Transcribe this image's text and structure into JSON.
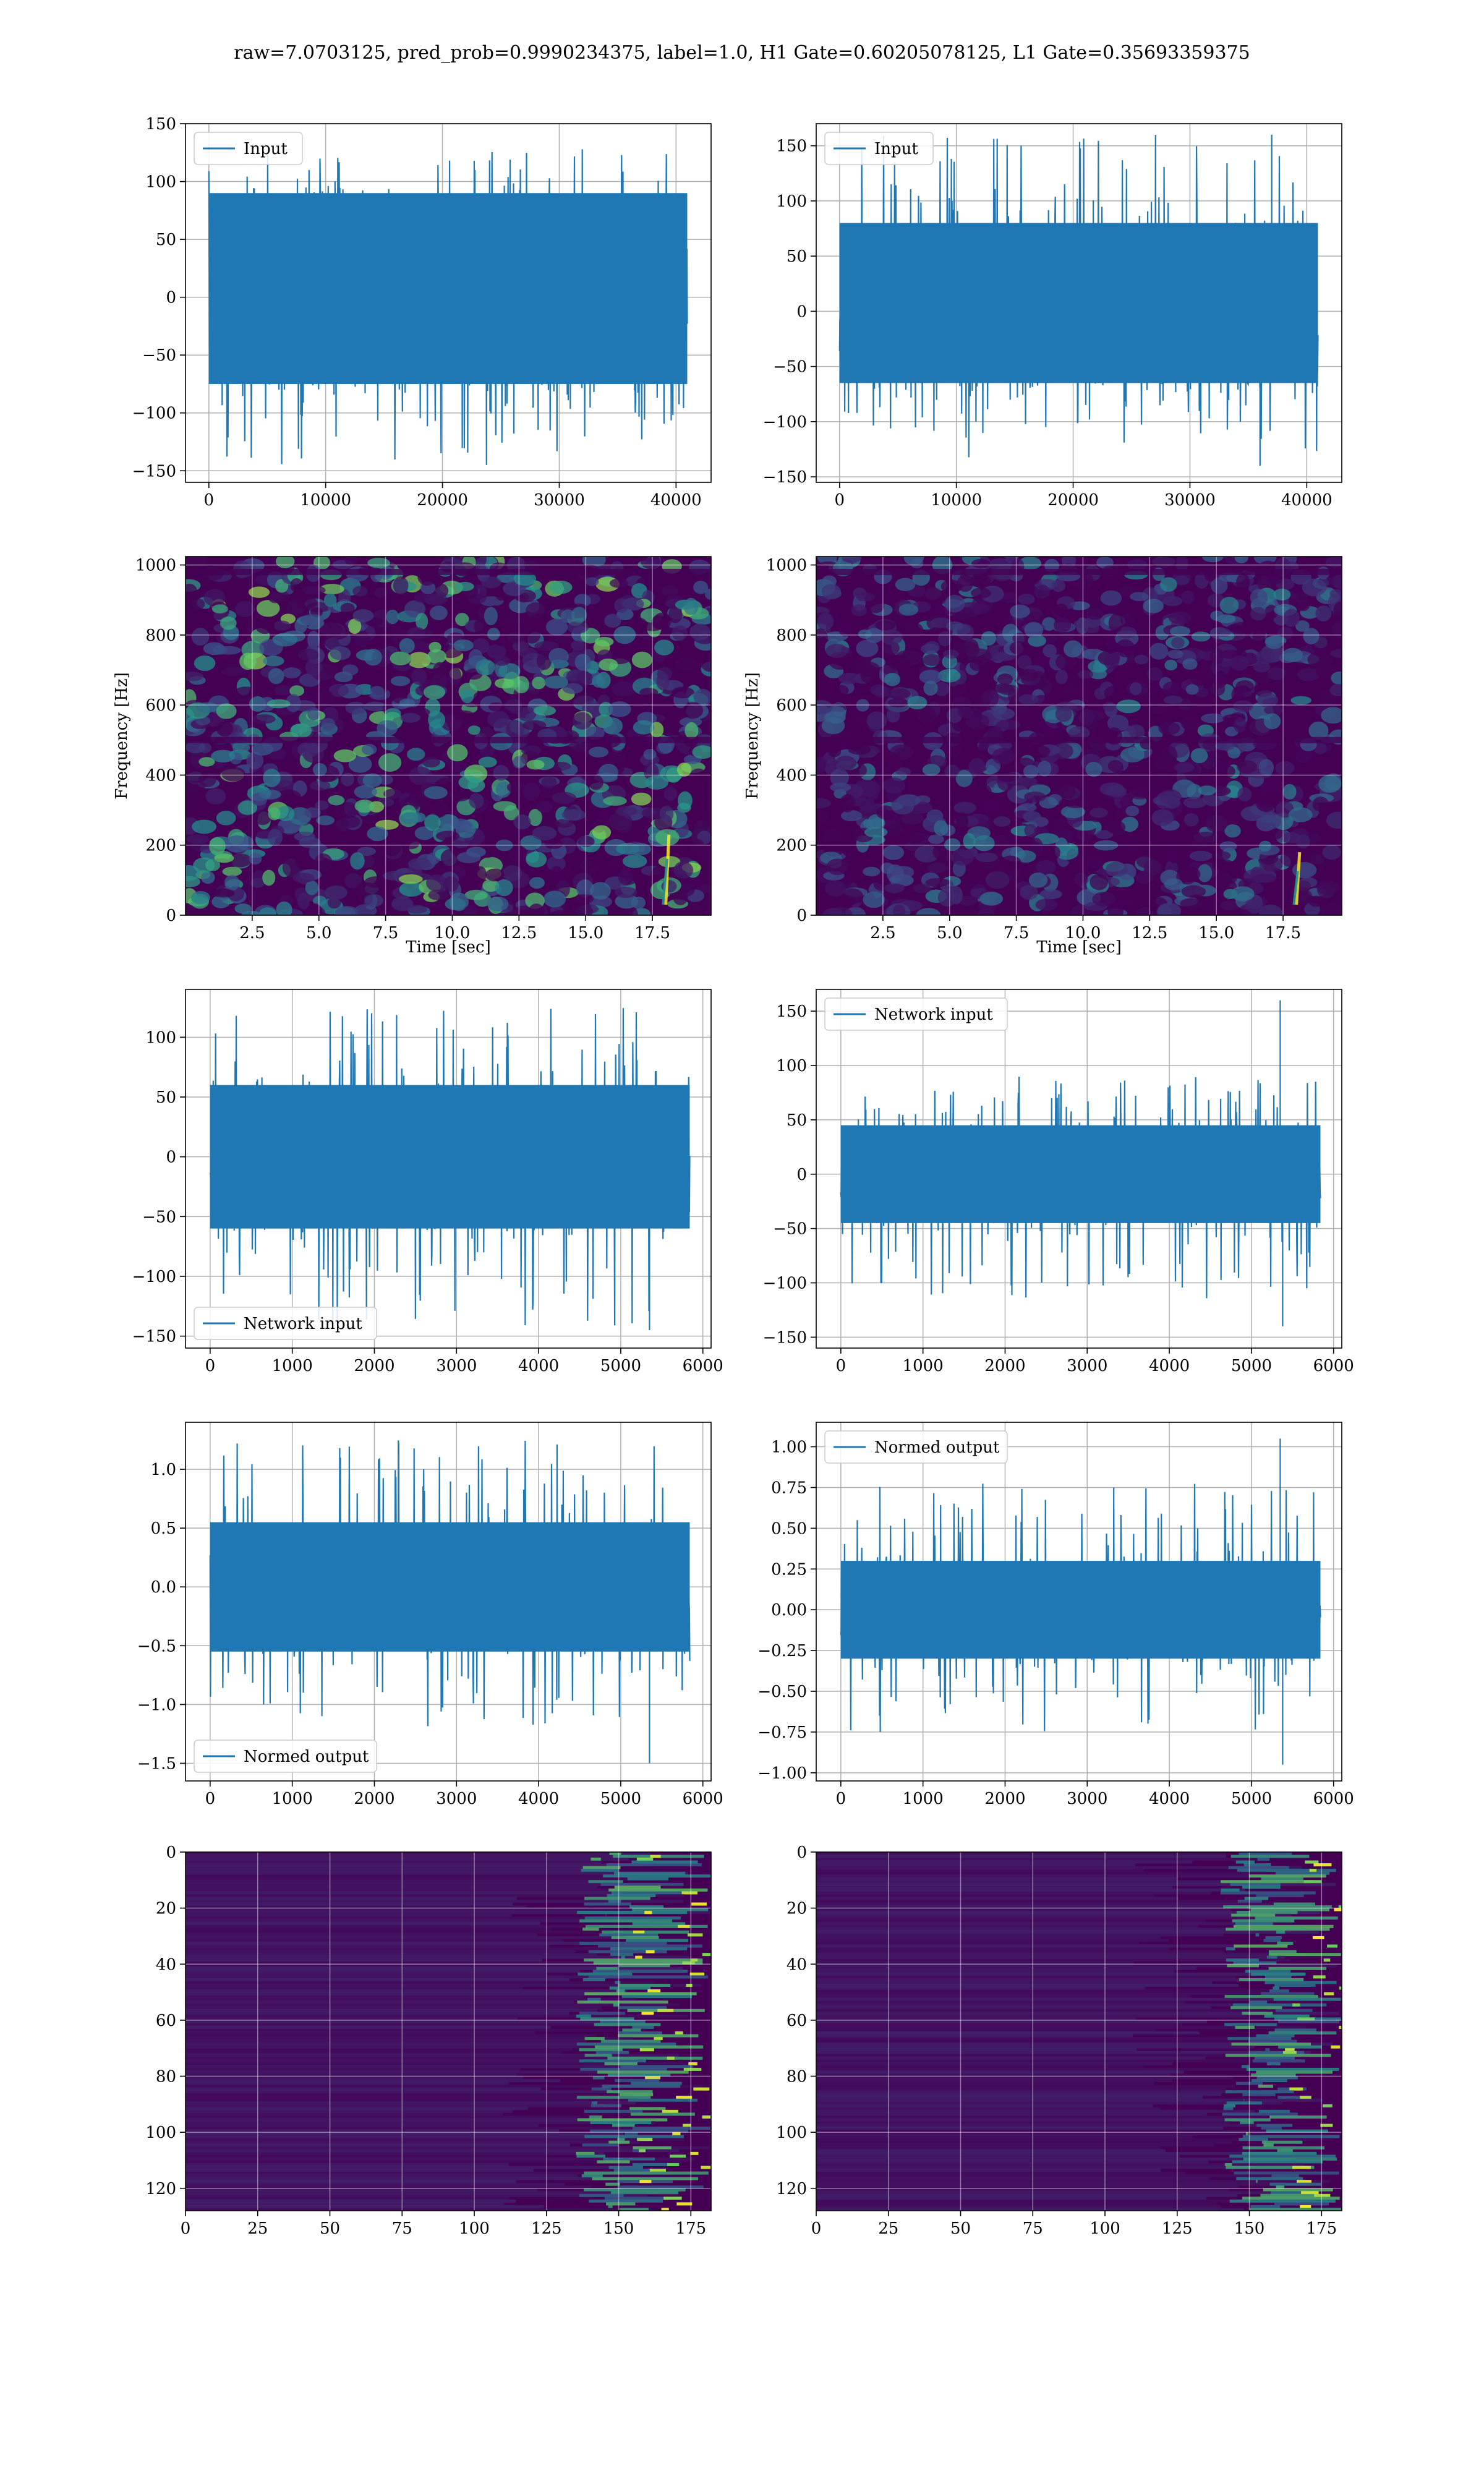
{
  "figure": {
    "title": "raw=7.0703125, pred_prob=0.9990234375, label=1.0, H1 Gate=0.60205078125, L1 Gate=0.35693359375"
  },
  "colors": {
    "line": "#1f77b4",
    "grid": "#b0b0b0",
    "spine": "#000000",
    "viridis_low": "#440154",
    "viridis_mid": "#21918c",
    "viridis_high": "#fde725"
  },
  "chart_data": [
    {
      "type": "line",
      "id": "input-h1",
      "legend": "Input",
      "legend_loc": "upper-left",
      "xlim": [
        -2000,
        43000
      ],
      "ylim": [
        -160,
        150
      ],
      "xticks": [
        0,
        10000,
        20000,
        30000,
        40000
      ],
      "xtick_labels": [
        "0",
        "10000",
        "20000",
        "30000",
        "40000"
      ],
      "yticks": [
        -150,
        -100,
        -50,
        0,
        50,
        100,
        150
      ],
      "ytick_labels": [
        "−150",
        "−100",
        "−50",
        "0",
        "50",
        "100",
        "150"
      ],
      "x_range": [
        0,
        40960
      ],
      "noise": {
        "core": [
          -75,
          90
        ],
        "peak": [
          -145,
          130
        ],
        "spikes": []
      }
    },
    {
      "type": "line",
      "id": "input-l1",
      "legend": "Input",
      "legend_loc": "upper-left",
      "xlim": [
        -2000,
        43000
      ],
      "ylim": [
        -155,
        170
      ],
      "xticks": [
        0,
        10000,
        20000,
        30000,
        40000
      ],
      "xtick_labels": [
        "0",
        "10000",
        "20000",
        "30000",
        "40000"
      ],
      "yticks": [
        -150,
        -100,
        -50,
        0,
        50,
        100,
        150
      ],
      "ytick_labels": [
        "−150",
        "−100",
        "−50",
        "0",
        "50",
        "100",
        "150"
      ],
      "x_range": [
        0,
        40960
      ],
      "noise": {
        "core": [
          -65,
          80
        ],
        "peak": [
          -140,
          160
        ],
        "spikes": [
          {
            "x": 37000,
            "value": 160
          },
          {
            "x": 36000,
            "value": -140
          }
        ]
      }
    },
    {
      "type": "spectrogram",
      "id": "spec-h1",
      "xlabel": "Time [sec]",
      "ylabel": "Frequency [Hz]",
      "xlim": [
        0,
        19.7
      ],
      "ylim": [
        0,
        1024
      ],
      "xticks": [
        2.5,
        5.0,
        7.5,
        10.0,
        12.5,
        15.0,
        17.5
      ],
      "xtick_labels": [
        "2.5",
        "5.0",
        "7.5",
        "10.0",
        "12.5",
        "15.0",
        "17.5"
      ],
      "yticks": [
        0,
        200,
        400,
        600,
        800,
        1000
      ],
      "ytick_labels": [
        "0",
        "200",
        "400",
        "600",
        "800",
        "1000"
      ],
      "chirp": {
        "t": 18.0,
        "f_low": 30,
        "f_high": 230
      },
      "intensity": "mid"
    },
    {
      "type": "spectrogram",
      "id": "spec-l1",
      "xlabel": "Time [sec]",
      "ylabel": "Frequency [Hz]",
      "xlim": [
        0,
        19.7
      ],
      "ylim": [
        0,
        1024
      ],
      "xticks": [
        2.5,
        5.0,
        7.5,
        10.0,
        12.5,
        15.0,
        17.5
      ],
      "xtick_labels": [
        "2.5",
        "5.0",
        "7.5",
        "10.0",
        "12.5",
        "15.0",
        "17.5"
      ],
      "yticks": [
        0,
        200,
        400,
        600,
        800,
        1000
      ],
      "ytick_labels": [
        "0",
        "200",
        "400",
        "600",
        "800",
        "1000"
      ],
      "chirp": {
        "t": 18.0,
        "f_low": 30,
        "f_high": 180
      },
      "intensity": "low"
    },
    {
      "type": "line",
      "id": "network-input-h1",
      "legend": "Network input",
      "legend_loc": "lower-left",
      "xlim": [
        -300,
        6100
      ],
      "ylim": [
        -160,
        140
      ],
      "xticks": [
        0,
        1000,
        2000,
        3000,
        4000,
        5000,
        6000
      ],
      "xtick_labels": [
        "0",
        "1000",
        "2000",
        "3000",
        "4000",
        "5000",
        "6000"
      ],
      "yticks": [
        -150,
        -100,
        -50,
        0,
        50,
        100
      ],
      "ytick_labels": [
        "−150",
        "−100",
        "−50",
        "0",
        "50",
        "100"
      ],
      "x_range": [
        0,
        5840
      ],
      "noise": {
        "core": [
          -60,
          60
        ],
        "peak": [
          -145,
          125
        ],
        "spikes": [
          {
            "x": 5350,
            "value": -145
          }
        ]
      }
    },
    {
      "type": "line",
      "id": "network-input-l1",
      "legend": "Network input",
      "legend_loc": "upper-left",
      "xlim": [
        -300,
        6100
      ],
      "ylim": [
        -160,
        170
      ],
      "xticks": [
        0,
        1000,
        2000,
        3000,
        4000,
        5000,
        6000
      ],
      "xtick_labels": [
        "0",
        "1000",
        "2000",
        "3000",
        "4000",
        "5000",
        "6000"
      ],
      "yticks": [
        -150,
        -100,
        -50,
        0,
        50,
        100,
        150
      ],
      "ytick_labels": [
        "−150",
        "−100",
        "−50",
        "0",
        "50",
        "100",
        "150"
      ],
      "x_range": [
        0,
        5840
      ],
      "noise": {
        "core": [
          -45,
          45
        ],
        "peak": [
          -115,
          90
        ],
        "spikes": [
          {
            "x": 5350,
            "value": 160
          },
          {
            "x": 5380,
            "value": -140
          }
        ]
      }
    },
    {
      "type": "line",
      "id": "normed-output-h1",
      "legend": "Normed output",
      "legend_loc": "lower-left",
      "xlim": [
        -300,
        6100
      ],
      "ylim": [
        -1.65,
        1.4
      ],
      "xticks": [
        0,
        1000,
        2000,
        3000,
        4000,
        5000,
        6000
      ],
      "xtick_labels": [
        "0",
        "1000",
        "2000",
        "3000",
        "4000",
        "5000",
        "6000"
      ],
      "yticks": [
        -1.5,
        -1.0,
        -0.5,
        0.0,
        0.5,
        1.0
      ],
      "ytick_labels": [
        "−1.5",
        "−1.0",
        "−0.5",
        "0.0",
        "0.5",
        "1.0"
      ],
      "x_range": [
        0,
        5840
      ],
      "noise": {
        "core": [
          -0.55,
          0.55
        ],
        "peak": [
          -1.2,
          1.25
        ],
        "spikes": [
          {
            "x": 5350,
            "value": -1.5
          }
        ]
      }
    },
    {
      "type": "line",
      "id": "normed-output-l1",
      "legend": "Normed output",
      "legend_loc": "upper-left",
      "xlim": [
        -300,
        6100
      ],
      "ylim": [
        -1.05,
        1.15
      ],
      "xticks": [
        0,
        1000,
        2000,
        3000,
        4000,
        5000,
        6000
      ],
      "xtick_labels": [
        "0",
        "1000",
        "2000",
        "3000",
        "4000",
        "5000",
        "6000"
      ],
      "yticks": [
        -1.0,
        -0.75,
        -0.5,
        -0.25,
        0.0,
        0.25,
        0.5,
        0.75,
        1.0
      ],
      "ytick_labels": [
        "−1.00",
        "−0.75",
        "−0.50",
        "−0.25",
        "0.00",
        "0.25",
        "0.50",
        "0.75",
        "1.00"
      ],
      "x_range": [
        0,
        5840
      ],
      "noise": {
        "core": [
          -0.3,
          0.3
        ],
        "peak": [
          -0.75,
          0.78
        ],
        "spikes": [
          {
            "x": 5350,
            "value": 1.05
          },
          {
            "x": 5380,
            "value": -0.95
          }
        ]
      }
    },
    {
      "type": "heatmap",
      "id": "feature-map-h1",
      "xlim": [
        0,
        182
      ],
      "ylim": [
        128,
        0
      ],
      "xticks": [
        0,
        25,
        50,
        75,
        100,
        125,
        150,
        175
      ],
      "xtick_labels": [
        "0",
        "25",
        "50",
        "75",
        "100",
        "125",
        "150",
        "175"
      ],
      "yticks": [
        0,
        20,
        40,
        60,
        80,
        100,
        120
      ],
      "ytick_labels": [
        "0",
        "20",
        "40",
        "60",
        "80",
        "100",
        "120"
      ],
      "active_from_col": 145
    },
    {
      "type": "heatmap",
      "id": "feature-map-l1",
      "xlim": [
        0,
        182
      ],
      "ylim": [
        128,
        0
      ],
      "xticks": [
        0,
        25,
        50,
        75,
        100,
        125,
        150,
        175
      ],
      "xtick_labels": [
        "0",
        "25",
        "50",
        "75",
        "100",
        "125",
        "150",
        "175"
      ],
      "yticks": [
        0,
        20,
        40,
        60,
        80,
        100,
        120
      ],
      "ytick_labels": [
        "0",
        "20",
        "40",
        "60",
        "80",
        "100",
        "120"
      ],
      "active_from_col": 150
    }
  ]
}
